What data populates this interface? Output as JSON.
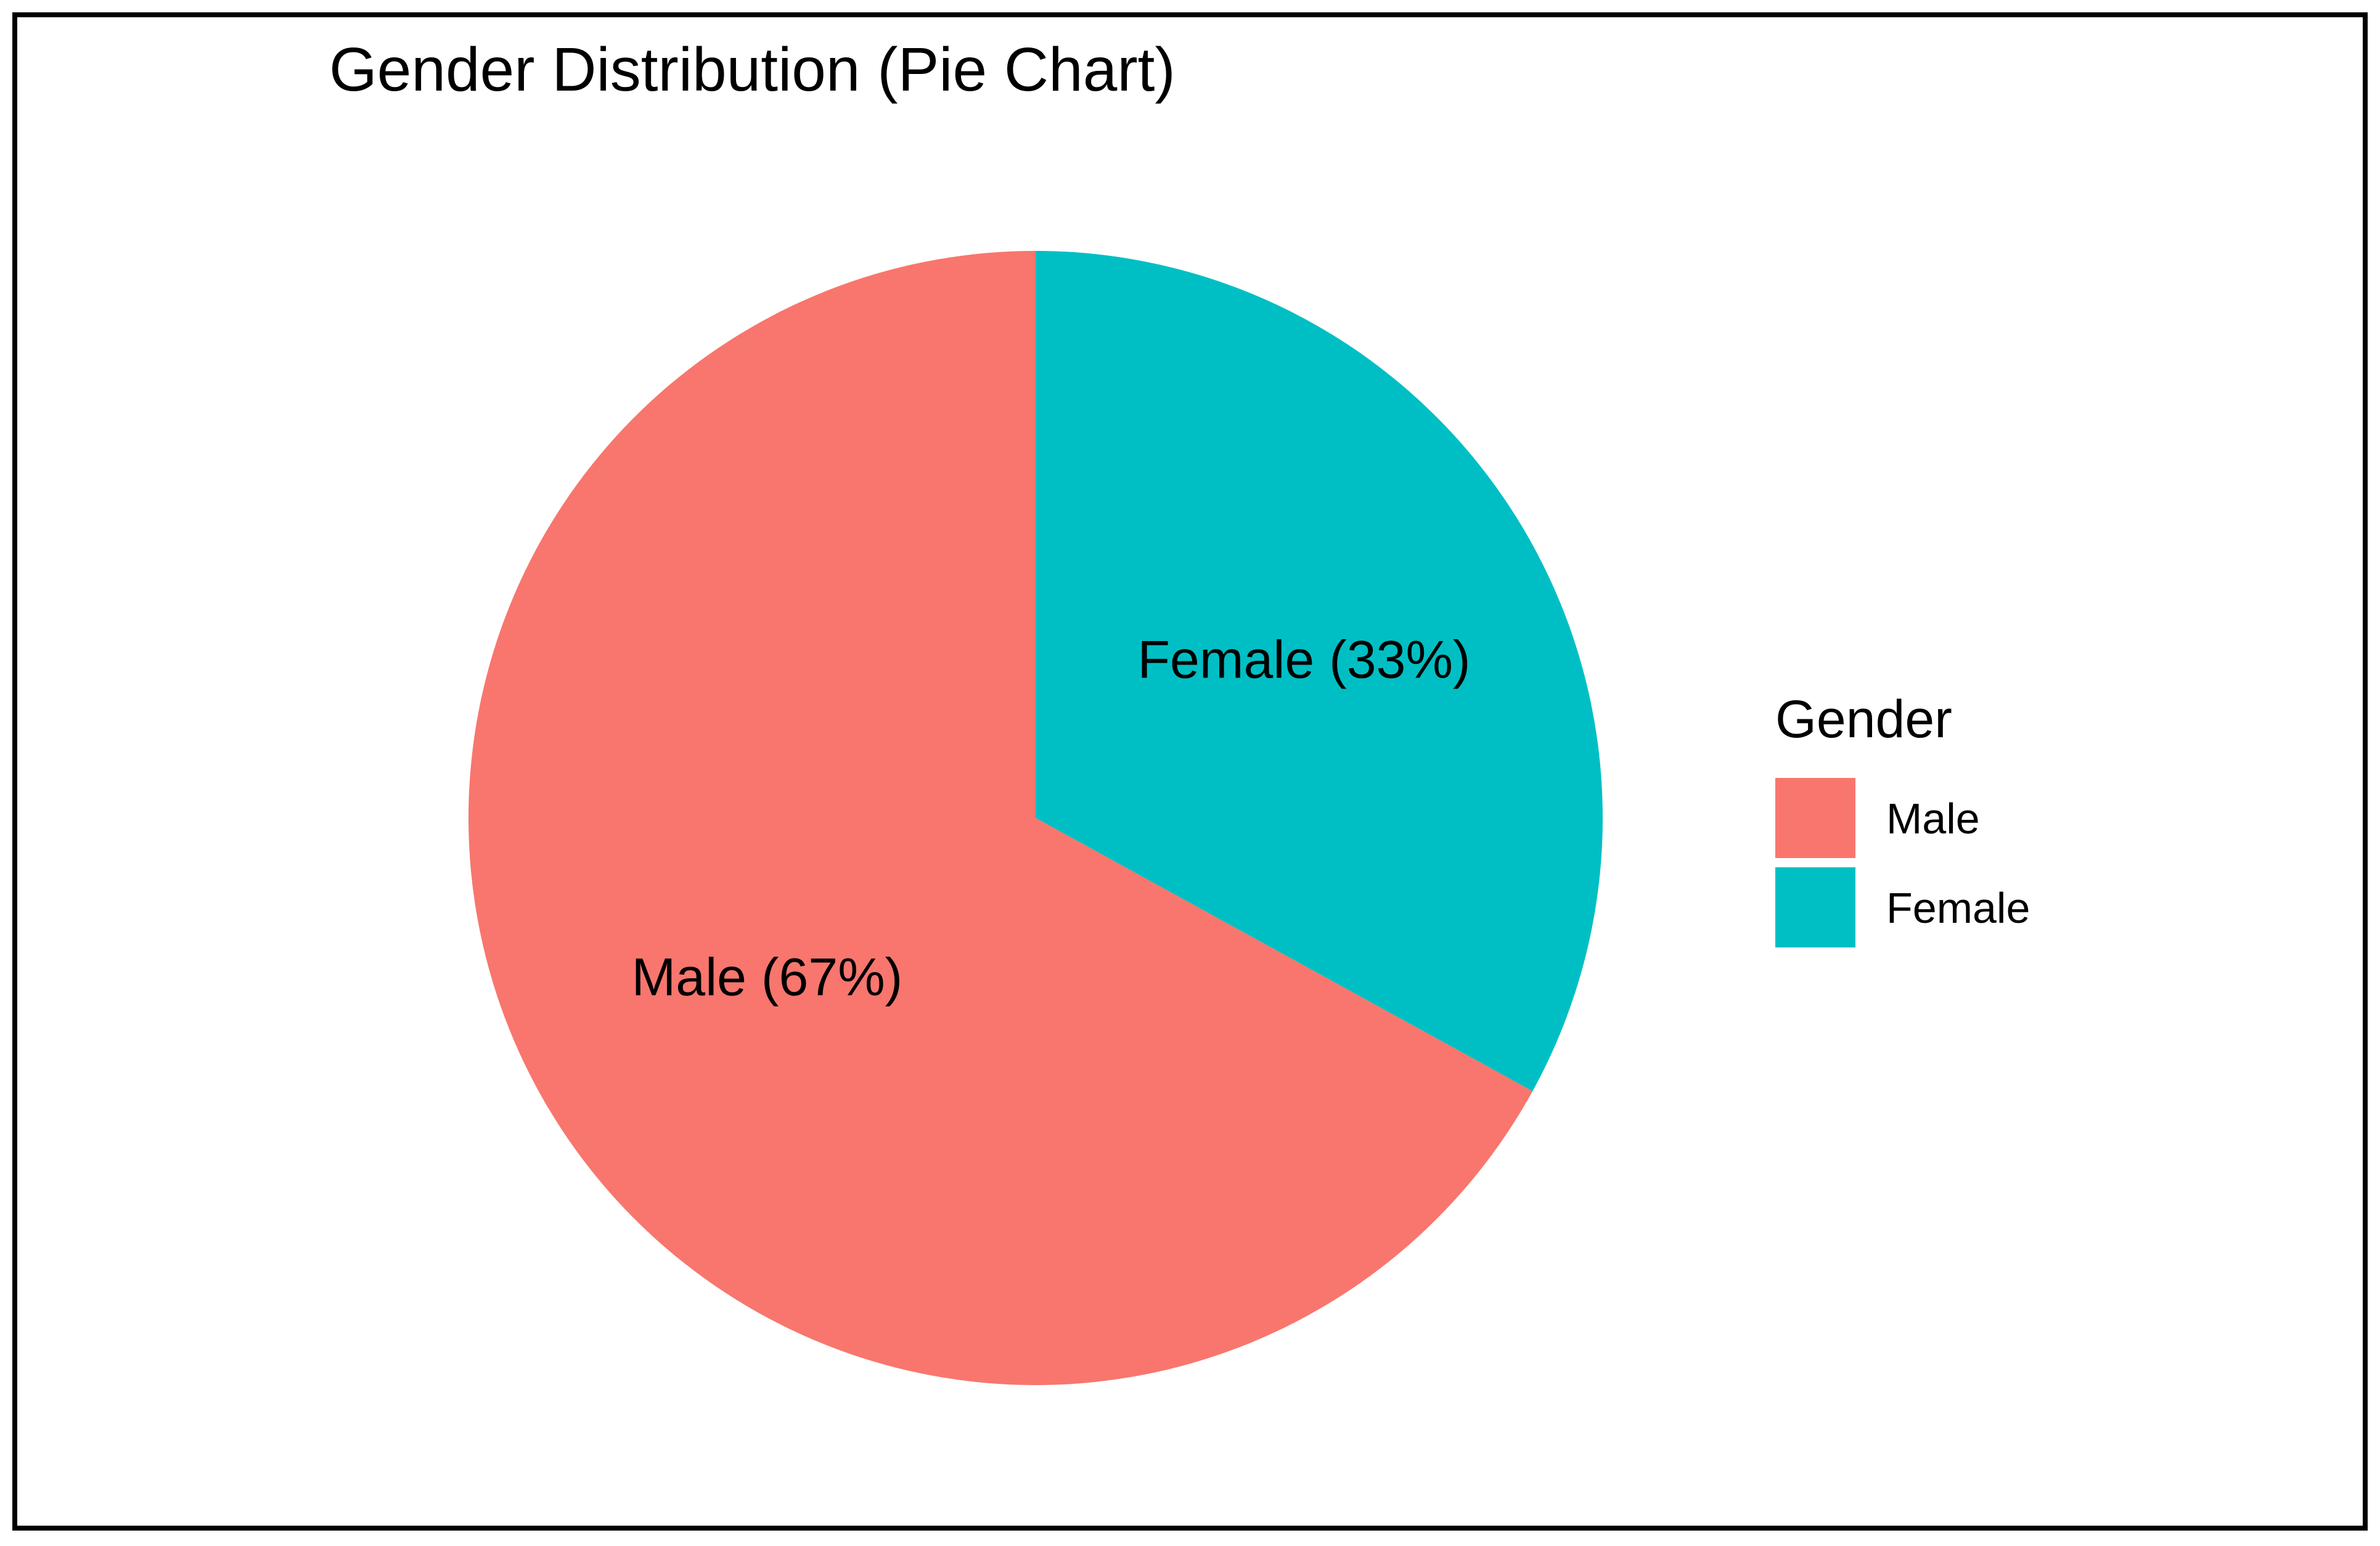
{
  "chart_data": {
    "type": "pie",
    "title": "Gender Distribution (Pie Chart)",
    "slices": [
      {
        "label": "Male",
        "value": 67,
        "data_label": "Male (67%)",
        "color": "#F8766D"
      },
      {
        "label": "Female",
        "value": 33,
        "data_label": "Female (33%)",
        "color": "#00BFC4"
      }
    ],
    "legend": {
      "title": "Gender",
      "placement": "right",
      "items": [
        {
          "label": "Male",
          "color": "#F8766D"
        },
        {
          "label": "Female",
          "color": "#00BFC4"
        }
      ]
    },
    "start": "12 o'clock",
    "direction": "clockwise, Female first"
  }
}
